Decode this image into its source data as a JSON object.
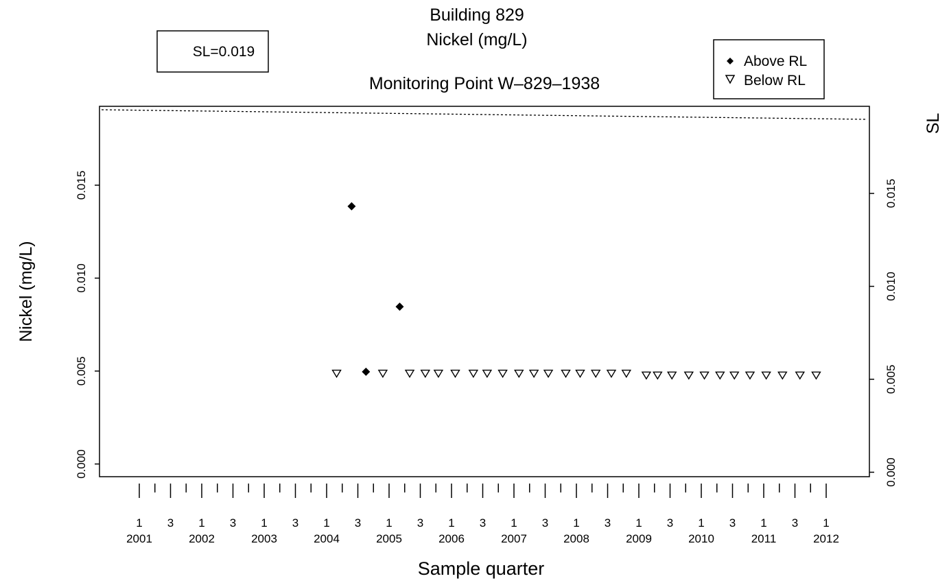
{
  "chart_data": {
    "type": "scatter",
    "title": "Building 829",
    "subtitle": "Nickel (mg/L)",
    "panel_title": "Monitoring Point W–829–1938",
    "xlabel": "Sample quarter",
    "ylabel": "Nickel (mg/L)",
    "right_axis_label": "SL",
    "ylim": [
      0.0,
      0.0195
    ],
    "y_ticks": [
      "0.000",
      "0.005",
      "0.010",
      "0.015"
    ],
    "right_y_ticks": [
      "0.000",
      "0.005",
      "0.010",
      "0.015"
    ],
    "x_range": [
      2001.0,
      2012.0
    ],
    "quarter_tick_labels": [
      "1",
      "3",
      "1",
      "3",
      "1",
      "3",
      "1",
      "3",
      "1",
      "3",
      "1",
      "3",
      "1",
      "3",
      "1",
      "3",
      "1",
      "3",
      "1",
      "3",
      "1",
      "3",
      "1"
    ],
    "quarter_tick_positions": [
      2001.0,
      2001.5,
      2002.0,
      2002.5,
      2003.0,
      2003.5,
      2004.0,
      2004.5,
      2005.0,
      2005.5,
      2006.0,
      2006.5,
      2007.0,
      2007.5,
      2008.0,
      2008.5,
      2009.0,
      2009.5,
      2010.0,
      2010.5,
      2011.0,
      2011.5,
      2012.0
    ],
    "year_labels": [
      "2001",
      "2002",
      "2003",
      "2004",
      "2005",
      "2006",
      "2007",
      "2008",
      "2009",
      "2010",
      "2011",
      "2012"
    ],
    "year_positions": [
      2001,
      2002,
      2003,
      2004,
      2005,
      2006,
      2007,
      2008,
      2009,
      2010,
      2011,
      2012
    ],
    "sl_value": 0.019,
    "sl_box_label": "SL=0.019",
    "legend": {
      "position": "top-right",
      "items": [
        {
          "label": "Above RL",
          "marker": "diamond"
        },
        {
          "label": "Below RL",
          "marker": "triangle-down"
        }
      ]
    },
    "series": [
      {
        "name": "Above RL",
        "marker": "diamond",
        "x": [
          2004.4,
          2004.63,
          2005.17
        ],
        "y": [
          0.0139,
          0.005,
          0.0085
        ]
      },
      {
        "name": "Below RL",
        "marker": "triangle-down",
        "x": [
          2004.16,
          2004.9,
          2005.33,
          2005.58,
          2005.79,
          2006.06,
          2006.35,
          2006.57,
          2006.82,
          2007.08,
          2007.32,
          2007.55,
          2007.83,
          2008.06,
          2008.31,
          2008.56,
          2008.8,
          2009.12,
          2009.3,
          2009.53,
          2009.8,
          2010.05,
          2010.3,
          2010.53,
          2010.78,
          2011.04,
          2011.3,
          2011.58,
          2011.84
        ],
        "y": [
          0.0049,
          0.0049,
          0.0049,
          0.0049,
          0.0049,
          0.0049,
          0.0049,
          0.0049,
          0.0049,
          0.0049,
          0.0049,
          0.0049,
          0.0049,
          0.0049,
          0.0049,
          0.0049,
          0.0049,
          0.0048,
          0.0048,
          0.0048,
          0.0048,
          0.0048,
          0.0048,
          0.0048,
          0.0048,
          0.0048,
          0.0048,
          0.0048,
          0.0048
        ]
      }
    ],
    "grid": false
  }
}
